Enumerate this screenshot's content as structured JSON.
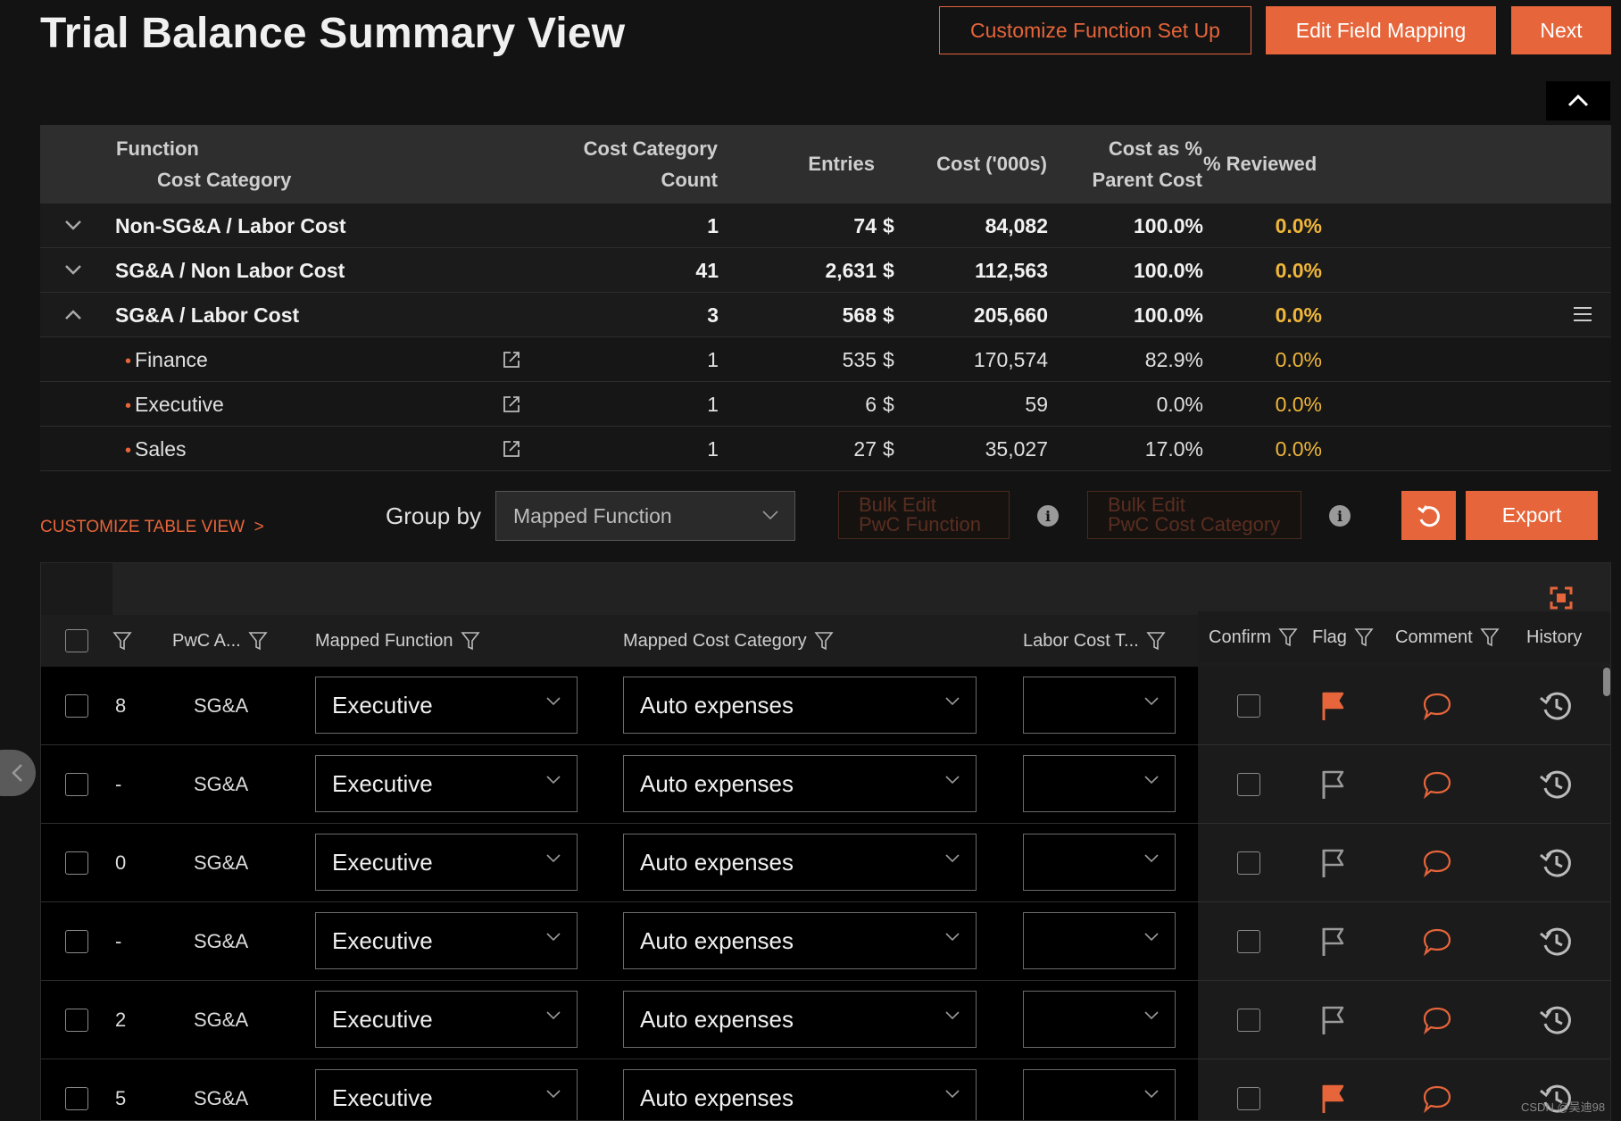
{
  "header": {
    "title": "Trial Balance Summary View",
    "customize_btn": "Customize Function Set Up",
    "edit_btn": "Edit Field Mapping",
    "next_btn": "Next"
  },
  "summary": {
    "columns": {
      "function": "Function",
      "cost_category": "Cost Category",
      "count_l1": "Cost Category",
      "count_l2": "Count",
      "entries": "Entries",
      "cost": "Cost ('000s)",
      "pct_l1": "Cost as %",
      "pct_l2": "Parent Cost",
      "reviewed": "% Reviewed"
    },
    "rows": [
      {
        "name": "Non-SG&A / Labor Cost",
        "count": "1",
        "entries": "74",
        "currency": "$",
        "cost": "84,082",
        "pct": "100.0%",
        "reviewed": "0.0%"
      },
      {
        "name": "SG&A / Non Labor Cost",
        "count": "41",
        "entries": "2,631",
        "currency": "$",
        "cost": "112,563",
        "pct": "100.0%",
        "reviewed": "0.0%"
      },
      {
        "name": "SG&A / Labor Cost",
        "count": "3",
        "entries": "568",
        "currency": "$",
        "cost": "205,660",
        "pct": "100.0%",
        "reviewed": "0.0%"
      }
    ],
    "children": [
      {
        "name": "Finance",
        "count": "1",
        "entries": "535",
        "currency": "$",
        "cost": "170,574",
        "pct": "82.9%",
        "reviewed": "0.0%"
      },
      {
        "name": "Executive",
        "count": "1",
        "entries": "6",
        "currency": "$",
        "cost": "59",
        "pct": "0.0%",
        "reviewed": "0.0%"
      },
      {
        "name": "Sales",
        "count": "1",
        "entries": "27",
        "currency": "$",
        "cost": "35,027",
        "pct": "17.0%",
        "reviewed": "0.0%"
      }
    ]
  },
  "toolbar": {
    "customize_view": "CUSTOMIZE TABLE VIEW  >",
    "group_by_label": "Group by",
    "group_by_value": "Mapped Function",
    "bulk_function_l1": "Bulk Edit",
    "bulk_function_l2": "PwC Function",
    "bulk_category_l1": "Bulk Edit",
    "bulk_category_l2": "PwC Cost Category",
    "export_btn": "Export"
  },
  "grid": {
    "columns": {
      "pwc_a": "PwC A...",
      "mapped_function": "Mapped Function",
      "mapped_cost_category": "Mapped Cost Category",
      "labor_cost_t": "Labor Cost T...",
      "confirm": "Confirm",
      "flag": "Flag",
      "comment": "Comment",
      "history": "History"
    },
    "rows": [
      {
        "col1": "8",
        "pwc": "SG&A",
        "function": "Executive",
        "category": "Auto expenses",
        "flagged": true
      },
      {
        "col1": "-",
        "pwc": "SG&A",
        "function": "Executive",
        "category": "Auto expenses",
        "flagged": false
      },
      {
        "col1": "0",
        "pwc": "SG&A",
        "function": "Executive",
        "category": "Auto expenses",
        "flagged": false
      },
      {
        "col1": "-",
        "pwc": "SG&A",
        "function": "Executive",
        "category": "Auto expenses",
        "flagged": false
      },
      {
        "col1": "2",
        "pwc": "SG&A",
        "function": "Executive",
        "category": "Auto expenses",
        "flagged": false
      },
      {
        "col1": "5",
        "pwc": "SG&A",
        "function": "Executive",
        "category": "Auto expenses",
        "flagged": true
      }
    ]
  },
  "watermark": "CSDN @吴迪98",
  "colors": {
    "accent": "#e6653a",
    "reviewed": "#f0b63a",
    "background": "#131313"
  }
}
